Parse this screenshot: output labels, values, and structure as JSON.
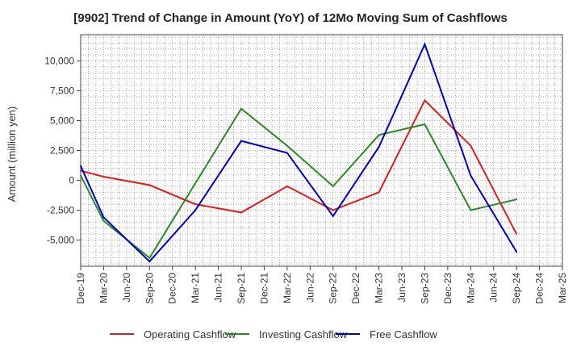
{
  "chart_data": {
    "type": "line",
    "title": "[9902]  Trend of Change in Amount (YoY) of 12Mo Moving Sum of Cashflows",
    "ylabel": "Amount (million yen)",
    "xlabel": "",
    "ylim": [
      -7200,
      12200
    ],
    "yticks": [
      -5000,
      -2500,
      0,
      2500,
      5000,
      7500,
      10000
    ],
    "ytick_labels": [
      "-5,000",
      "-2,500",
      "0",
      "2,500",
      "5,000",
      "7,500",
      "10,000"
    ],
    "categories": [
      "Dec-19",
      "Mar-20",
      "Jun-20",
      "Sep-20",
      "Dec-20",
      "Mar-21",
      "Jun-21",
      "Sep-21",
      "Dec-21",
      "Mar-22",
      "Jun-22",
      "Sep-22",
      "Dec-22",
      "Mar-23",
      "Jun-23",
      "Sep-23",
      "Dec-23",
      "Mar-24",
      "Jun-24",
      "Sep-24",
      "Dec-24",
      "Mar-25"
    ],
    "grid": true,
    "legend_position": "bottom",
    "series": [
      {
        "name": "Operating Cashflow",
        "color": "#e31a1c",
        "values": [
          800,
          300,
          null,
          -400,
          null,
          -2000,
          null,
          -2700,
          null,
          -500,
          null,
          -2500,
          null,
          -1000,
          null,
          6700,
          null,
          2900,
          null,
          -4500,
          null,
          null
        ]
      },
      {
        "name": "Investing Cashflow",
        "color": "#2a8a22",
        "values": [
          400,
          -3400,
          null,
          -6500,
          null,
          null,
          null,
          6000,
          null,
          2900,
          null,
          -500,
          null,
          3800,
          null,
          4700,
          null,
          -2500,
          null,
          -1600,
          null,
          null
        ]
      },
      {
        "name": "Free Cashflow",
        "color": "#0000cc",
        "values": [
          1200,
          -3100,
          null,
          -6800,
          null,
          -2500,
          null,
          3300,
          null,
          2300,
          null,
          -3000,
          null,
          2800,
          null,
          11400,
          null,
          400,
          null,
          -6000,
          null,
          null
        ]
      }
    ]
  }
}
